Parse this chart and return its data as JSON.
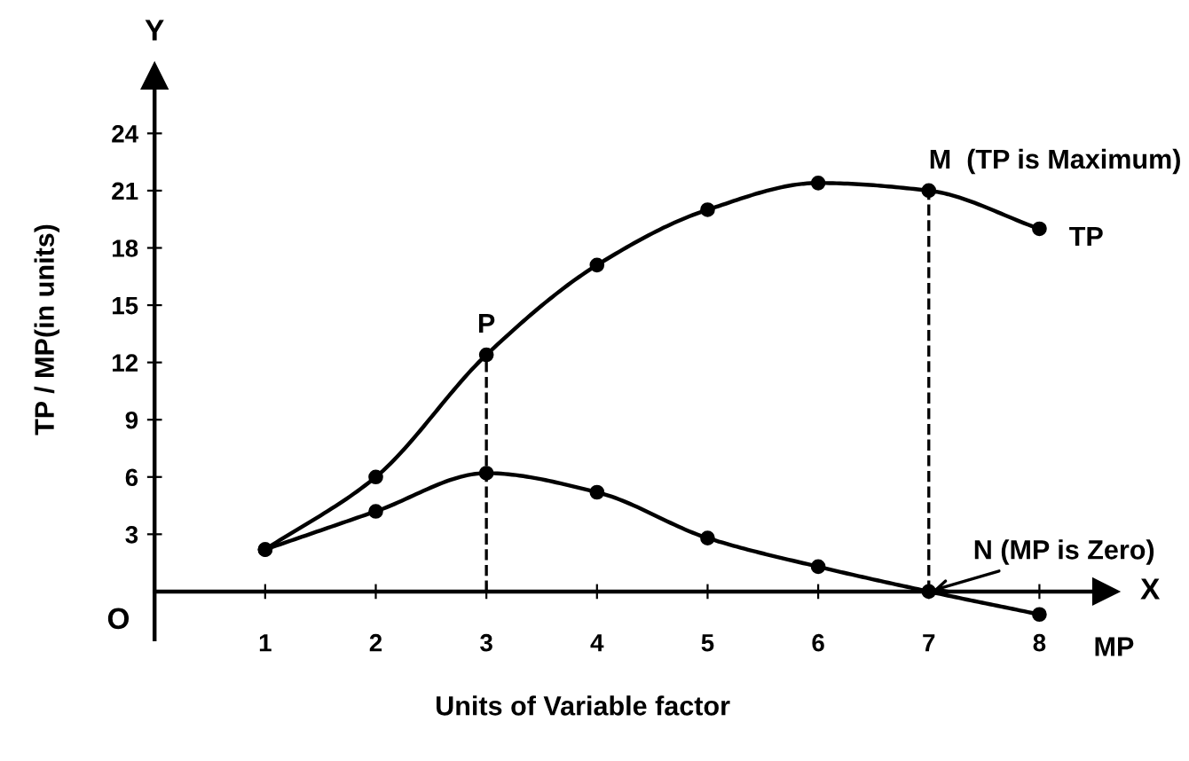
{
  "chart_data": {
    "type": "line",
    "xlabel": "Units of Variable factor",
    "ylabel": "TP / MP(in units)",
    "x": [
      1,
      2,
      3,
      4,
      5,
      6,
      7,
      8
    ],
    "series": [
      {
        "name": "TP",
        "color": "#000000",
        "values": [
          2.2,
          6.0,
          12.4,
          17.1,
          20.0,
          21.4,
          21.0,
          19.0
        ]
      },
      {
        "name": "MP",
        "color": "#000000",
        "values": [
          2.2,
          4.2,
          6.2,
          5.2,
          2.8,
          1.3,
          0,
          -1.2
        ]
      }
    ],
    "xlim": [
      0,
      8.6
    ],
    "ylim": [
      -2.5,
      27
    ],
    "xticks": [
      1,
      2,
      3,
      4,
      5,
      6,
      7,
      8
    ],
    "yticks": [
      3,
      6,
      9,
      12,
      15,
      18,
      21,
      24
    ],
    "ref_lines": [
      {
        "axis": "x",
        "value": 3,
        "label": "P",
        "line_style": "dashed"
      },
      {
        "axis": "x",
        "value": 7,
        "label": "M  (TP is Maximum)",
        "line_style": "dashed"
      }
    ],
    "annotations": [
      {
        "text": "N (MP is Zero)",
        "x": 7,
        "y": 0
      },
      "X",
      "Y",
      "O"
    ],
    "marker": "circle",
    "line_style": "solid",
    "grid": false,
    "legend": false
  }
}
